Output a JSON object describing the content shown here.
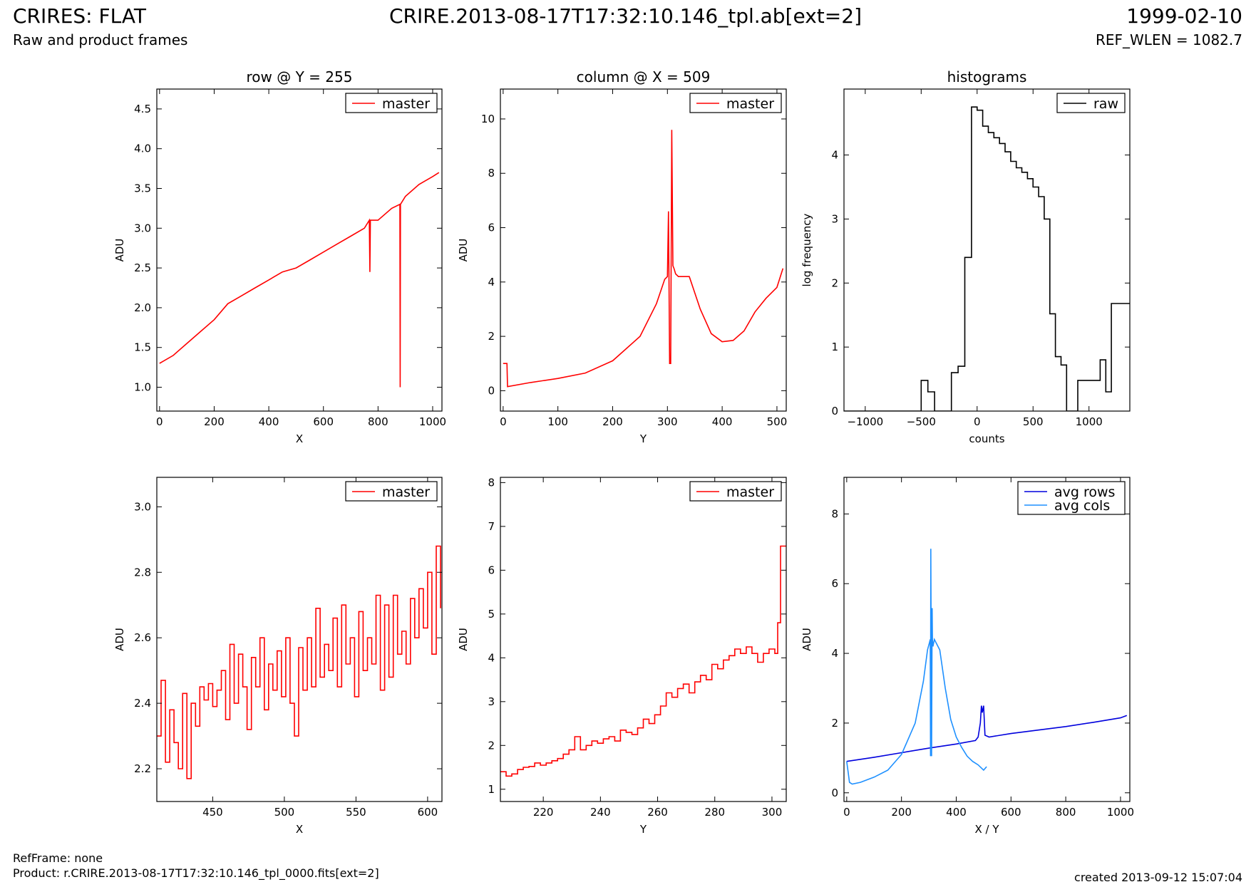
{
  "header": {
    "title": "CRIRES: FLAT",
    "subtitle": "Raw and product frames",
    "file": "CRIRE.2013-08-17T17:32:10.146_tpl.ab[ext=2]",
    "date": "1999-02-10",
    "ref_wlen": "REF_WLEN = 1082.7"
  },
  "footer": {
    "refframe": "RefFrame: none",
    "product": "Product: r.CRIRE.2013-08-17T17:32:10.146_tpl_0000.fits[ext=2]",
    "created": "created 2013-09-12 15:07:04"
  },
  "chart_data": [
    {
      "type": "line",
      "title": "row @ Y = 255",
      "xlabel": "X",
      "ylabel": "ADU",
      "xlim": [
        -10,
        1034
      ],
      "ylim": [
        0.7,
        4.75
      ],
      "xticks": [
        0,
        200,
        400,
        600,
        800,
        1000
      ],
      "yticks": [
        1.0,
        1.5,
        2.0,
        2.5,
        3.0,
        3.5,
        4.0,
        4.5
      ],
      "legend": "top-right",
      "series": [
        {
          "name": "master",
          "color": "#ff0000",
          "x": [
            0,
            50,
            100,
            150,
            200,
            250,
            300,
            350,
            400,
            450,
            500,
            550,
            600,
            650,
            700,
            750,
            768,
            770,
            772,
            800,
            850,
            880,
            881,
            882,
            900,
            950,
            1000,
            1023
          ],
          "y": [
            1.3,
            1.4,
            1.55,
            1.7,
            1.85,
            2.05,
            2.15,
            2.25,
            2.35,
            2.45,
            2.5,
            2.6,
            2.7,
            2.8,
            2.9,
            3.0,
            3.1,
            2.45,
            3.1,
            3.1,
            3.25,
            3.3,
            1.0,
            3.3,
            3.4,
            3.55,
            3.65,
            3.7
          ]
        }
      ]
    },
    {
      "type": "line",
      "title": "column @ X = 509",
      "xlabel": "Y",
      "ylabel": "ADU",
      "xlim": [
        -5,
        517
      ],
      "ylim": [
        -0.75,
        11.1
      ],
      "xticks": [
        0,
        100,
        200,
        300,
        400,
        500
      ],
      "yticks": [
        0,
        2,
        4,
        6,
        8,
        10
      ],
      "legend": "top-right",
      "series": [
        {
          "name": "master",
          "color": "#ff0000",
          "x": [
            0,
            7,
            8,
            50,
            100,
            150,
            200,
            250,
            280,
            295,
            300,
            302,
            304,
            306,
            308,
            310,
            312,
            315,
            320,
            340,
            360,
            380,
            400,
            420,
            440,
            460,
            480,
            500,
            511
          ],
          "y": [
            1.0,
            1.0,
            0.15,
            0.3,
            0.45,
            0.65,
            1.1,
            2.0,
            3.2,
            4.1,
            4.2,
            6.6,
            1.0,
            1.0,
            9.6,
            4.6,
            4.5,
            4.3,
            4.2,
            4.2,
            3.0,
            2.1,
            1.8,
            1.85,
            2.2,
            2.9,
            3.4,
            3.8,
            4.5
          ]
        }
      ]
    },
    {
      "type": "line",
      "title": "histograms",
      "xlabel": "counts",
      "ylabel": "log frequency",
      "xlim": [
        -1190,
        1365
      ],
      "ylim": [
        0,
        5.03
      ],
      "xticks": [
        -1000,
        -500,
        0,
        500,
        1000
      ],
      "yticks": [
        0,
        1,
        2,
        3,
        4
      ],
      "legend": "top-right",
      "series": [
        {
          "name": "raw",
          "color": "#000000",
          "step": true,
          "x": [
            -1190,
            -500,
            -440,
            -380,
            -230,
            -170,
            -110,
            -50,
            0,
            50,
            100,
            150,
            200,
            250,
            300,
            350,
            400,
            450,
            500,
            550,
            600,
            650,
            700,
            750,
            800,
            850,
            900,
            950,
            1000,
            1050,
            1100,
            1150,
            1200,
            1250,
            1300,
            1365
          ],
          "y": [
            0,
            0.48,
            0.3,
            0,
            0.6,
            0.7,
            2.4,
            4.75,
            4.7,
            4.45,
            4.35,
            4.27,
            4.18,
            4.05,
            3.9,
            3.8,
            3.73,
            3.63,
            3.5,
            3.35,
            3.0,
            1.52,
            0.85,
            0.72,
            0,
            0,
            0.48,
            0.48,
            0.48,
            0.48,
            0.8,
            0.3,
            1.68,
            1.68,
            1.68,
            1.68
          ]
        }
      ]
    },
    {
      "type": "line",
      "xlabel": "X",
      "ylabel": "ADU",
      "xlim": [
        411,
        610
      ],
      "ylim": [
        2.1,
        3.09
      ],
      "xticks": [
        450,
        500,
        550,
        600
      ],
      "yticks": [
        2.2,
        2.4,
        2.6,
        2.8,
        3.0
      ],
      "legend": "top-right",
      "series": [
        {
          "name": "master",
          "color": "#ff0000",
          "step": true,
          "x": [
            411,
            414,
            417,
            420,
            423,
            426,
            429,
            432,
            435,
            438,
            441,
            444,
            447,
            450,
            453,
            456,
            459,
            462,
            465,
            468,
            471,
            474,
            477,
            480,
            483,
            486,
            489,
            492,
            495,
            498,
            501,
            504,
            507,
            510,
            513,
            516,
            519,
            522,
            525,
            528,
            531,
            534,
            537,
            540,
            543,
            546,
            549,
            552,
            555,
            558,
            561,
            564,
            567,
            570,
            573,
            576,
            579,
            582,
            585,
            588,
            591,
            594,
            597,
            600,
            603,
            606,
            609
          ],
          "y": [
            2.3,
            2.47,
            2.22,
            2.38,
            2.28,
            2.2,
            2.43,
            2.17,
            2.4,
            2.33,
            2.45,
            2.41,
            2.46,
            2.39,
            2.44,
            2.5,
            2.35,
            2.58,
            2.4,
            2.55,
            2.45,
            2.32,
            2.54,
            2.45,
            2.6,
            2.38,
            2.52,
            2.44,
            2.56,
            2.42,
            2.6,
            2.4,
            2.3,
            2.57,
            2.44,
            2.6,
            2.45,
            2.69,
            2.48,
            2.58,
            2.5,
            2.66,
            2.45,
            2.7,
            2.52,
            2.6,
            2.42,
            2.68,
            2.5,
            2.6,
            2.52,
            2.73,
            2.44,
            2.7,
            2.48,
            2.73,
            2.55,
            2.62,
            2.52,
            2.72,
            2.6,
            2.75,
            2.63,
            2.8,
            2.55,
            2.88,
            2.69
          ]
        }
      ]
    },
    {
      "type": "line",
      "xlabel": "Y",
      "ylabel": "ADU",
      "xlim": [
        205,
        305
      ],
      "ylim": [
        0.72,
        8.12
      ],
      "xticks": [
        220,
        240,
        260,
        280,
        300
      ],
      "yticks": [
        1,
        2,
        3,
        4,
        5,
        6,
        7,
        8
      ],
      "legend": "top-right",
      "series": [
        {
          "name": "master",
          "color": "#ff0000",
          "step": true,
          "x": [
            205,
            207,
            209,
            211,
            213,
            215,
            217,
            219,
            221,
            223,
            225,
            227,
            229,
            231,
            233,
            235,
            237,
            239,
            241,
            243,
            245,
            247,
            249,
            251,
            253,
            255,
            257,
            259,
            261,
            263,
            265,
            267,
            269,
            271,
            273,
            275,
            277,
            279,
            281,
            283,
            285,
            287,
            289,
            291,
            293,
            295,
            297,
            299,
            301,
            302,
            303,
            304,
            305
          ],
          "y": [
            1.4,
            1.3,
            1.35,
            1.45,
            1.5,
            1.52,
            1.6,
            1.55,
            1.6,
            1.65,
            1.7,
            1.8,
            1.9,
            2.2,
            1.9,
            2.0,
            2.1,
            2.05,
            2.15,
            2.2,
            2.1,
            2.35,
            2.3,
            2.25,
            2.4,
            2.6,
            2.5,
            2.7,
            2.9,
            3.2,
            3.1,
            3.3,
            3.4,
            3.2,
            3.45,
            3.6,
            3.5,
            3.85,
            3.75,
            3.95,
            4.05,
            4.2,
            4.1,
            4.25,
            4.1,
            3.9,
            4.1,
            4.2,
            4.1,
            4.8,
            6.55,
            6.55,
            6.55
          ]
        }
      ]
    },
    {
      "type": "line",
      "xlabel": "X / Y",
      "ylabel": "ADU",
      "xlim": [
        -10,
        1034
      ],
      "ylim": [
        -0.25,
        9.05
      ],
      "xticks": [
        0,
        200,
        400,
        600,
        800,
        1000
      ],
      "yticks": [
        0,
        2,
        4,
        6,
        8
      ],
      "legend": "top-right",
      "series": [
        {
          "name": "avg rows",
          "color": "#0000dd",
          "x": [
            0,
            100,
            200,
            300,
            400,
            470,
            480,
            488,
            492,
            495,
            500,
            505,
            520,
            600,
            700,
            800,
            900,
            1000,
            1023
          ],
          "y": [
            0.9,
            1.02,
            1.15,
            1.28,
            1.4,
            1.5,
            1.6,
            2.0,
            2.5,
            2.3,
            2.5,
            1.65,
            1.6,
            1.7,
            1.8,
            1.9,
            2.02,
            2.15,
            2.22
          ]
        },
        {
          "name": "avg cols",
          "color": "#1e90ff",
          "x": [
            0,
            5,
            10,
            20,
            50,
            100,
            150,
            200,
            250,
            280,
            295,
            302,
            305,
            306,
            307,
            310,
            312,
            313,
            315,
            320,
            340,
            360,
            380,
            400,
            420,
            440,
            460,
            480,
            500,
            511
          ],
          "y": [
            0.9,
            0.6,
            0.3,
            0.25,
            0.3,
            0.45,
            0.65,
            1.1,
            2.0,
            3.2,
            4.1,
            4.3,
            4.4,
            1.05,
            7.0,
            1.05,
            5.3,
            4.4,
            4.2,
            4.4,
            4.1,
            3.0,
            2.1,
            1.6,
            1.3,
            1.05,
            0.9,
            0.8,
            0.65,
            0.75
          ]
        }
      ]
    }
  ]
}
